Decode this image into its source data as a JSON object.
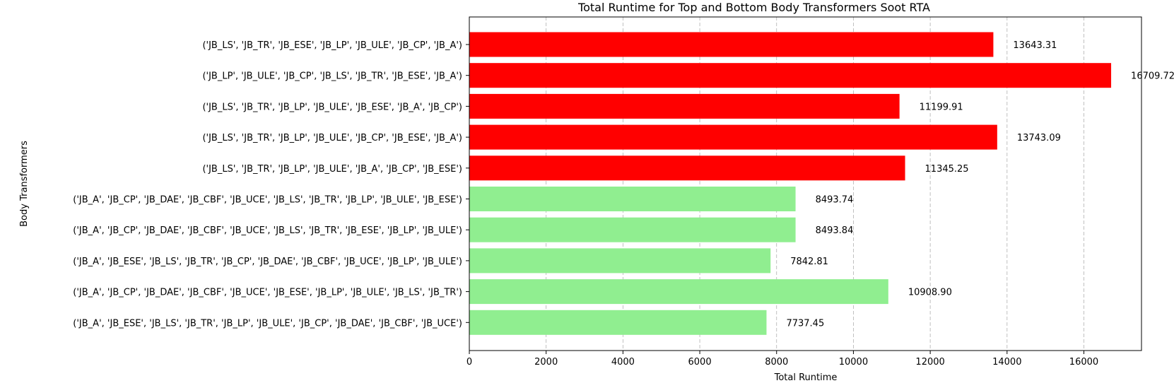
{
  "chart_data": {
    "type": "bar",
    "orientation": "horizontal",
    "title": "Total Runtime for Top and Bottom Body Transformers Soot RTA",
    "xlabel": "Total Runtime",
    "ylabel": "Body Transformers",
    "xlim": [
      0,
      17500
    ],
    "xticks": [
      0,
      2000,
      4000,
      6000,
      8000,
      10000,
      12000,
      14000,
      16000
    ],
    "xtick_labels": [
      "0",
      "2000",
      "4000",
      "6000",
      "8000",
      "10000",
      "12000",
      "14000",
      "16000"
    ],
    "grid": "x dashed",
    "legend": "none",
    "colors": {
      "top": "#ff0000",
      "bottom": "#90ee90"
    },
    "bars": [
      {
        "category": "('JB_LS', 'JB_TR', 'JB_ESE', 'JB_LP', 'JB_ULE', 'JB_CP', 'JB_A')",
        "value": 13643.31,
        "label": "13643.31",
        "group": "top"
      },
      {
        "category": "('JB_LP', 'JB_ULE', 'JB_CP', 'JB_LS', 'JB_TR', 'JB_ESE', 'JB_A')",
        "value": 16709.72,
        "label": "16709.72",
        "group": "top"
      },
      {
        "category": "('JB_LS', 'JB_TR', 'JB_LP', 'JB_ULE', 'JB_ESE', 'JB_A', 'JB_CP')",
        "value": 11199.91,
        "label": "11199.91",
        "group": "top"
      },
      {
        "category": "('JB_LS', 'JB_TR', 'JB_LP', 'JB_ULE', 'JB_CP', 'JB_ESE', 'JB_A')",
        "value": 13743.09,
        "label": "13743.09",
        "group": "top"
      },
      {
        "category": "('JB_LS', 'JB_TR', 'JB_LP', 'JB_ULE', 'JB_A', 'JB_CP', 'JB_ESE')",
        "value": 11345.25,
        "label": "11345.25",
        "group": "top"
      },
      {
        "category": "('JB_A', 'JB_CP', 'JB_DAE', 'JB_CBF', 'JB_UCE', 'JB_LS', 'JB_TR', 'JB_LP', 'JB_ULE', 'JB_ESE')",
        "value": 8493.74,
        "label": "8493.74",
        "group": "bottom"
      },
      {
        "category": "('JB_A', 'JB_CP', 'JB_DAE', 'JB_CBF', 'JB_UCE', 'JB_LS', 'JB_TR', 'JB_ESE', 'JB_LP', 'JB_ULE')",
        "value": 8493.84,
        "label": "8493.84",
        "group": "bottom"
      },
      {
        "category": "('JB_A', 'JB_ESE', 'JB_LS', 'JB_TR', 'JB_CP', 'JB_DAE', 'JB_CBF', 'JB_UCE', 'JB_LP', 'JB_ULE')",
        "value": 7842.81,
        "label": "7842.81",
        "group": "bottom"
      },
      {
        "category": "('JB_A', 'JB_CP', 'JB_DAE', 'JB_CBF', 'JB_UCE', 'JB_ESE', 'JB_LP', 'JB_ULE', 'JB_LS', 'JB_TR')",
        "value": 10908.9,
        "label": "10908.90",
        "group": "bottom"
      },
      {
        "category": "('JB_A', 'JB_ESE', 'JB_LS', 'JB_TR', 'JB_LP', 'JB_ULE', 'JB_CP', 'JB_DAE', 'JB_CBF', 'JB_UCE')",
        "value": 7737.45,
        "label": "7737.45",
        "group": "bottom"
      }
    ]
  }
}
